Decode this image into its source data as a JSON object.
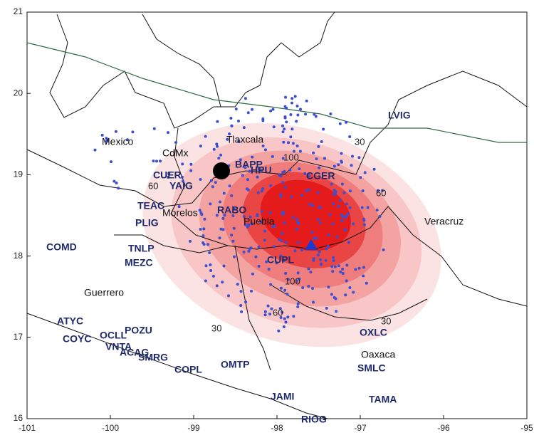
{
  "map": {
    "xlim": [
      -101,
      -95
    ],
    "ylim": [
      16,
      21
    ],
    "xticks": [
      -101,
      -100,
      -99,
      -98,
      -97,
      -96,
      -95
    ],
    "yticks": [
      16,
      17,
      18,
      19,
      20,
      21
    ],
    "places": [
      "Mexico",
      "CdMx",
      "Tlaxcala",
      "Morelos",
      "Puebla",
      "Veracruz",
      "Guerrero",
      "Oaxaca"
    ],
    "stations": [
      "LVIG",
      "CUER",
      "YAIG",
      "TEAC",
      "PLIG",
      "RABO",
      "BAPP",
      "HPU",
      "CGER",
      "COMD",
      "TNLP",
      "MEZC",
      "CUPL",
      "ATYC",
      "OCLL",
      "COYC",
      "POZU",
      "VNTA",
      "ACAG",
      "SMRG",
      "OXLC",
      "SMLC",
      "OMTP",
      "COPL",
      "JAMI",
      "TAMA",
      "RIOG"
    ],
    "contour_labels": [
      "30",
      "60",
      "100",
      "100",
      "60",
      "30",
      "30",
      "60"
    ]
  }
}
